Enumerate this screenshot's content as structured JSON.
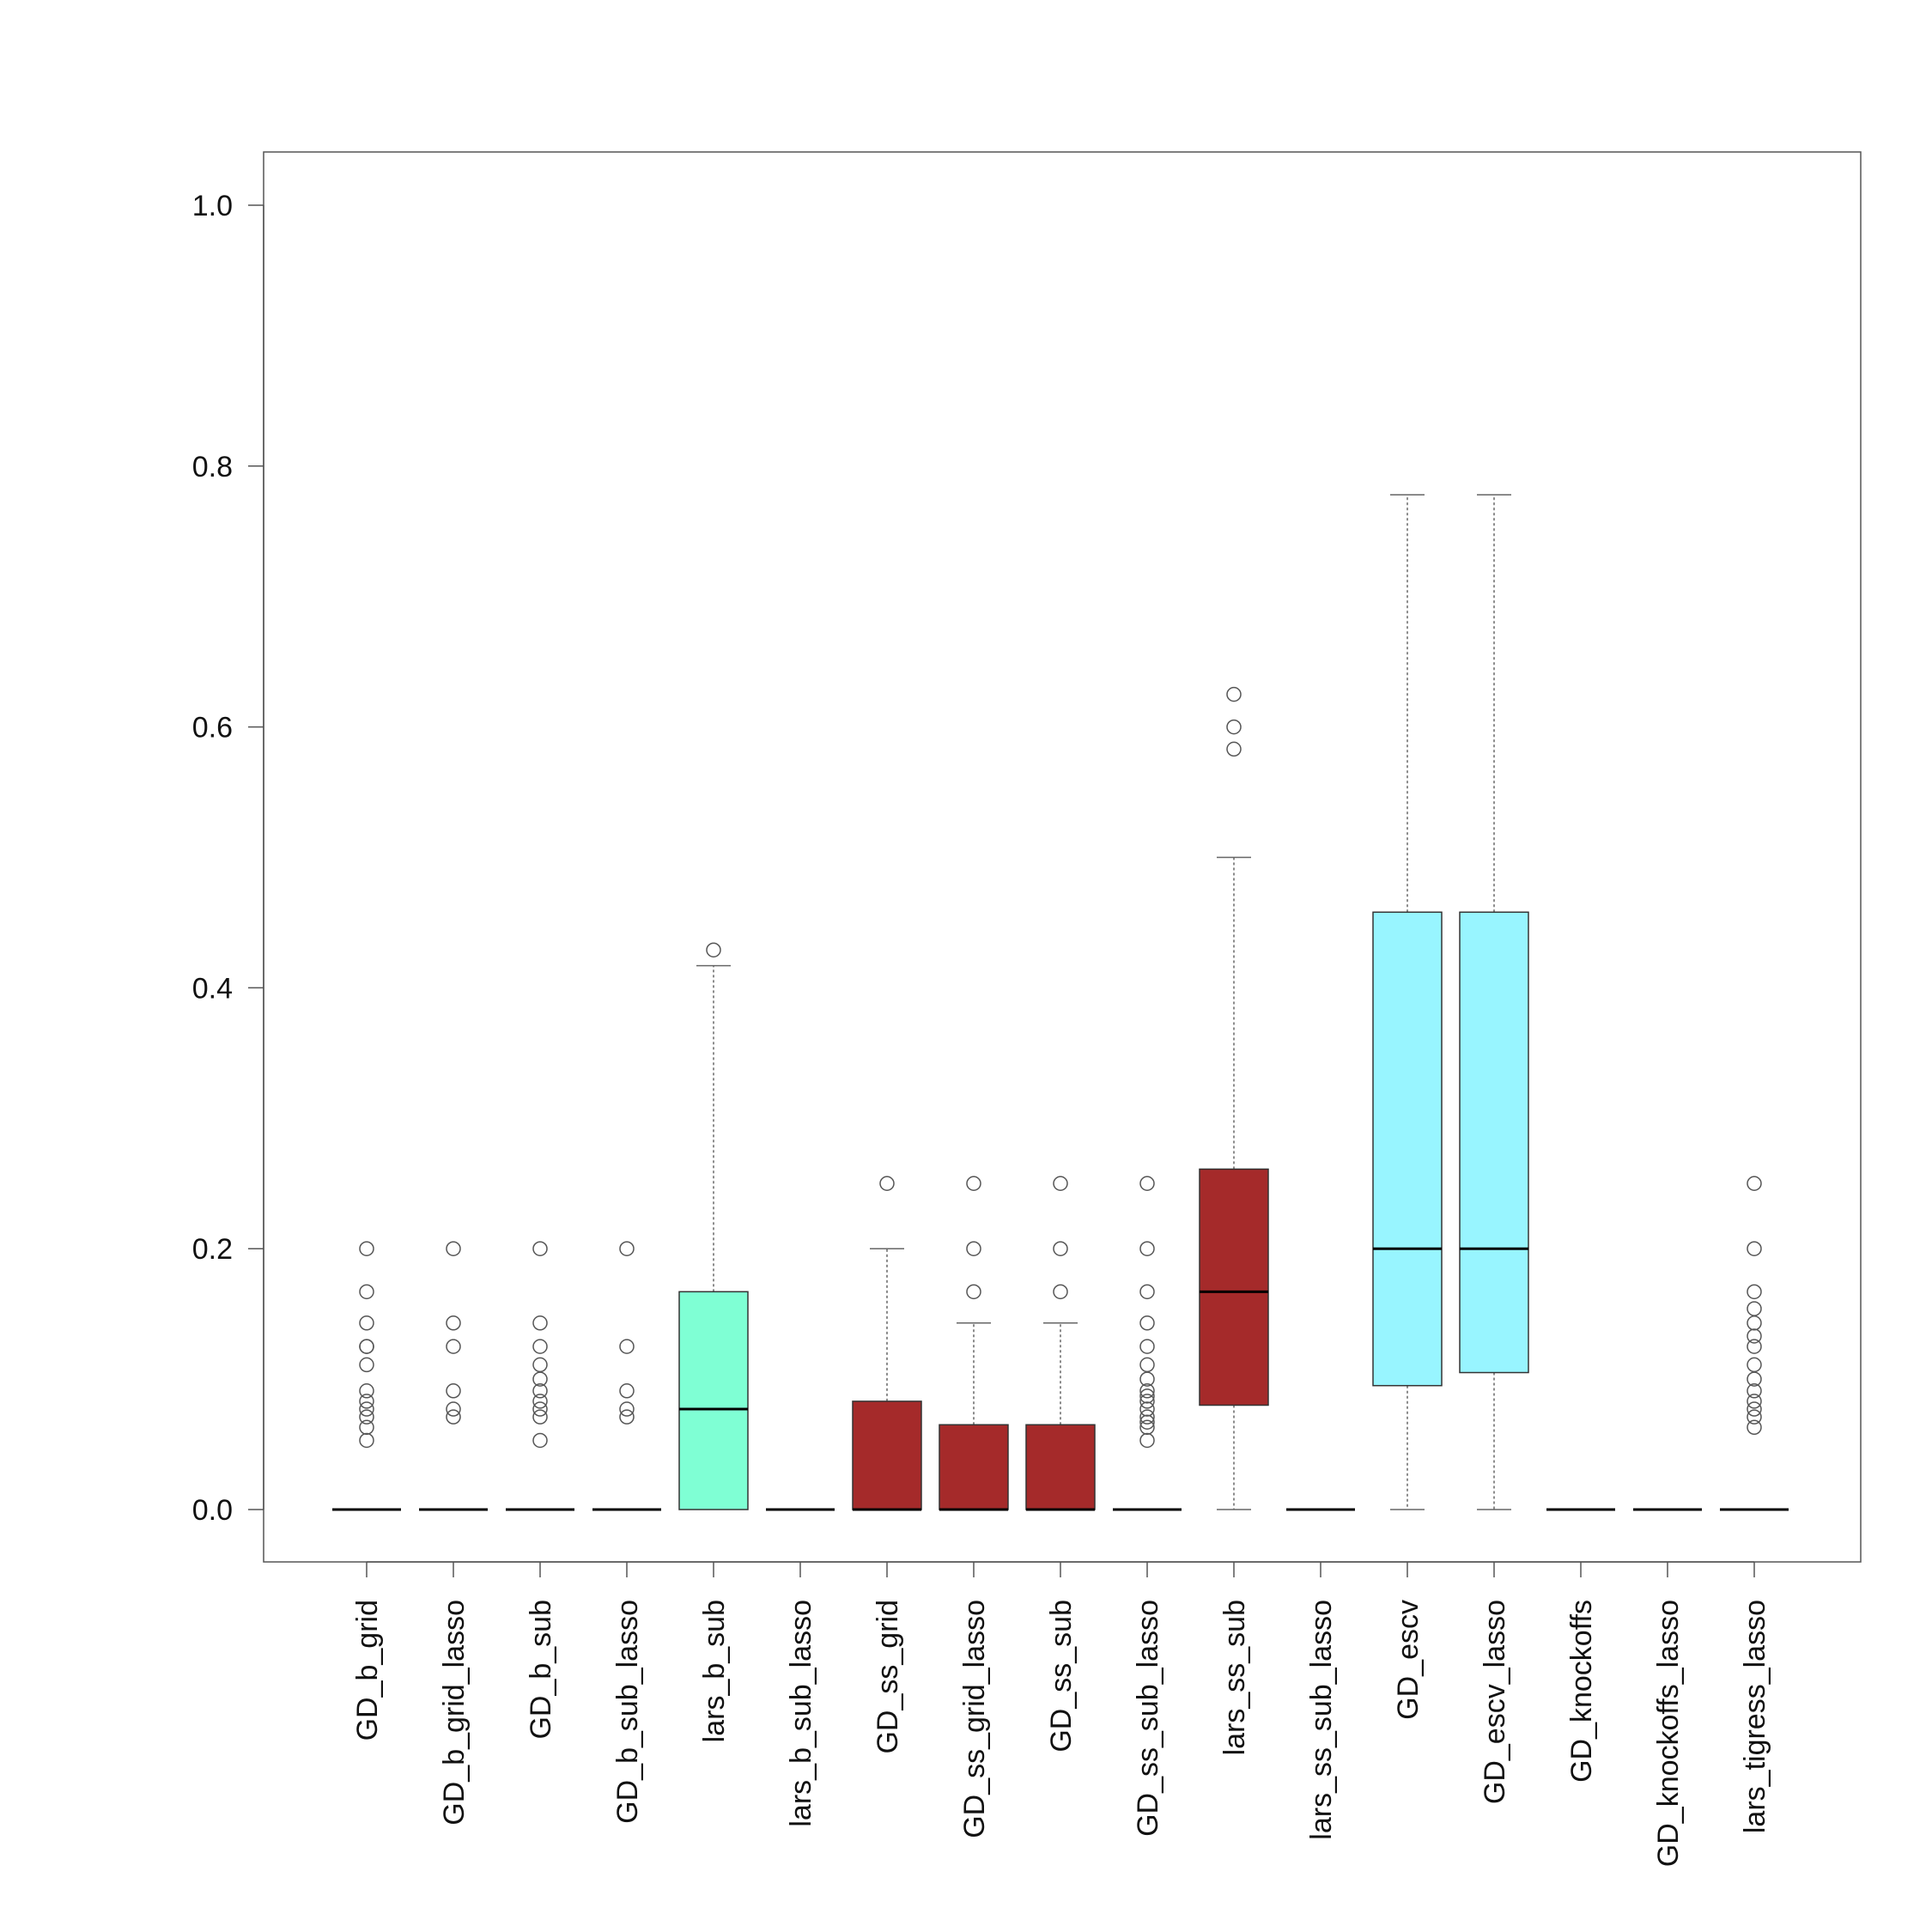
{
  "chart_data": {
    "type": "boxplot",
    "title": "",
    "xlabel": "",
    "ylabel": "",
    "ylim": [
      -0.04,
      1.04
    ],
    "yticks": [
      0.0,
      0.2,
      0.4,
      0.6,
      0.8,
      1.0
    ],
    "ytick_labels": [
      "0.0",
      "0.2",
      "0.4",
      "0.6",
      "0.8",
      "1.0"
    ],
    "grid": false,
    "legend": "none",
    "colors": {
      "aquamarine": "#7fffd4",
      "brown": "#a52a2a",
      "cyan": "#98f5ff",
      "box_border": "#333333",
      "median": "#000000",
      "outlier": "#555555",
      "whisker": "#666666",
      "frame": "#555555"
    },
    "series": [
      {
        "name": "GD_b_grid",
        "q1": 0,
        "median": 0,
        "q3": 0,
        "whisker_low": 0,
        "whisker_high": 0,
        "color": "",
        "outliers": [
          0.2,
          0.167,
          0.143,
          0.125,
          0.125,
          0.111,
          0.091,
          0.083,
          0.077,
          0.071,
          0.063,
          0.053
        ]
      },
      {
        "name": "GD_b_grid_lasso",
        "q1": 0,
        "median": 0,
        "q3": 0,
        "whisker_low": 0,
        "whisker_high": 0,
        "color": "",
        "outliers": [
          0.2,
          0.143,
          0.125,
          0.091,
          0.077,
          0.071
        ]
      },
      {
        "name": "GD_b_sub",
        "q1": 0,
        "median": 0,
        "q3": 0,
        "whisker_low": 0,
        "whisker_high": 0,
        "color": "",
        "outliers": [
          0.2,
          0.143,
          0.125,
          0.111,
          0.1,
          0.091,
          0.083,
          0.077,
          0.071,
          0.053
        ]
      },
      {
        "name": "GD_b_sub_lasso",
        "q1": 0,
        "median": 0,
        "q3": 0,
        "whisker_low": 0,
        "whisker_high": 0,
        "color": "",
        "outliers": [
          0.2,
          0.125,
          0.091,
          0.077,
          0.071
        ]
      },
      {
        "name": "lars_b_sub",
        "q1": 0,
        "median": 0.077,
        "q3": 0.167,
        "whisker_low": 0,
        "whisker_high": 0.417,
        "color": "aquamarine",
        "outliers": [
          0.429
        ]
      },
      {
        "name": "lars_b_sub_lasso",
        "q1": 0,
        "median": 0,
        "q3": 0,
        "whisker_low": 0,
        "whisker_high": 0,
        "color": "",
        "outliers": []
      },
      {
        "name": "GD_ss_grid",
        "q1": 0,
        "median": 0,
        "q3": 0.083,
        "whisker_low": 0,
        "whisker_high": 0.2,
        "color": "brown",
        "outliers": [
          0.25
        ]
      },
      {
        "name": "GD_ss_grid_lasso",
        "q1": 0,
        "median": 0,
        "q3": 0.065,
        "whisker_low": 0,
        "whisker_high": 0.143,
        "color": "brown",
        "outliers": [
          0.25,
          0.2,
          0.167
        ]
      },
      {
        "name": "GD_ss_sub",
        "q1": 0,
        "median": 0,
        "q3": 0.065,
        "whisker_low": 0,
        "whisker_high": 0.143,
        "color": "brown",
        "outliers": [
          0.25,
          0.2,
          0.167
        ]
      },
      {
        "name": "GD_ss_sub_lasso",
        "q1": 0,
        "median": 0,
        "q3": 0,
        "whisker_low": 0,
        "whisker_high": 0,
        "color": "",
        "outliers": [
          0.25,
          0.2,
          0.167,
          0.143,
          0.125,
          0.111,
          0.1,
          0.091,
          0.087,
          0.083,
          0.077,
          0.071,
          0.067,
          0.063,
          0.053
        ]
      },
      {
        "name": "lars_ss_sub",
        "q1": 0.08,
        "median": 0.167,
        "q3": 0.261,
        "whisker_low": 0,
        "whisker_high": 0.5,
        "color": "brown",
        "outliers": [
          0.625,
          0.6,
          0.583
        ]
      },
      {
        "name": "lars_ss_sub_lasso",
        "q1": 0,
        "median": 0,
        "q3": 0,
        "whisker_low": 0,
        "whisker_high": 0,
        "color": "",
        "outliers": []
      },
      {
        "name": "GD_escv",
        "q1": 0.095,
        "median": 0.2,
        "q3": 0.458,
        "whisker_low": 0,
        "whisker_high": 0.778,
        "color": "cyan",
        "outliers": []
      },
      {
        "name": "GD_escv_lasso",
        "q1": 0.105,
        "median": 0.2,
        "q3": 0.458,
        "whisker_low": 0,
        "whisker_high": 0.778,
        "color": "cyan",
        "outliers": []
      },
      {
        "name": "GD_knockoffs",
        "q1": 0,
        "median": 0,
        "q3": 0,
        "whisker_low": 0,
        "whisker_high": 0,
        "color": "",
        "outliers": []
      },
      {
        "name": "GD_knockoffs_lasso",
        "q1": 0,
        "median": 0,
        "q3": 0,
        "whisker_low": 0,
        "whisker_high": 0,
        "color": "",
        "outliers": []
      },
      {
        "name": "lars_tigress_lasso",
        "q1": 0,
        "median": 0,
        "q3": 0,
        "whisker_low": 0,
        "whisker_high": 0,
        "color": "",
        "outliers": [
          0.25,
          0.2,
          0.167,
          0.154,
          0.143,
          0.133,
          0.125,
          0.111,
          0.1,
          0.091,
          0.083,
          0.077,
          0.071,
          0.063
        ]
      }
    ]
  }
}
